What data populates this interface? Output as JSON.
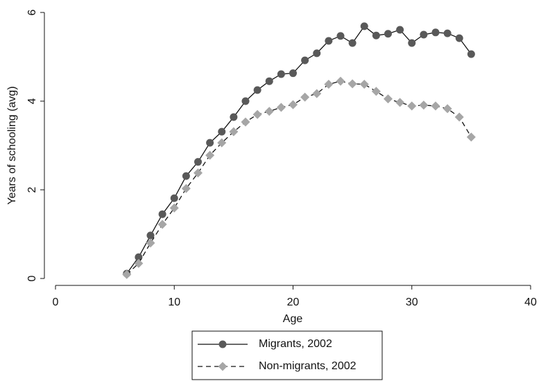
{
  "chart_data": {
    "type": "line",
    "xlabel": "Age",
    "ylabel": "Years of schooling (avg)",
    "x": [
      6,
      7,
      8,
      9,
      10,
      11,
      12,
      13,
      14,
      15,
      16,
      17,
      18,
      19,
      20,
      21,
      22,
      23,
      24,
      25,
      26,
      27,
      28,
      29,
      30,
      31,
      32,
      33,
      34,
      35
    ],
    "series": [
      {
        "name": "Migrants, 2002",
        "color": "#595959",
        "marker": "circle",
        "dash": "solid",
        "values": [
          0.11,
          0.48,
          0.97,
          1.45,
          1.81,
          2.31,
          2.63,
          3.06,
          3.31,
          3.64,
          4.0,
          4.25,
          4.45,
          4.61,
          4.63,
          4.92,
          5.08,
          5.36,
          5.47,
          5.31,
          5.69,
          5.48,
          5.52,
          5.61,
          5.31,
          5.5,
          5.55,
          5.53,
          5.42,
          5.06
        ]
      },
      {
        "name": "Non-migrants, 2002",
        "color": "#a6a6a6",
        "marker": "diamond",
        "dash": "dashed",
        "values": [
          0.09,
          0.34,
          0.8,
          1.22,
          1.59,
          2.03,
          2.38,
          2.78,
          3.06,
          3.31,
          3.53,
          3.7,
          3.77,
          3.86,
          3.92,
          4.09,
          4.17,
          4.38,
          4.45,
          4.39,
          4.38,
          4.22,
          4.05,
          3.97,
          3.89,
          3.91,
          3.89,
          3.83,
          3.64,
          3.19
        ]
      }
    ],
    "xlim": [
      0,
      40
    ],
    "xticks": [
      0,
      10,
      20,
      30,
      40
    ],
    "ylim": [
      0,
      6
    ],
    "yticks": [
      0,
      2,
      4,
      6
    ],
    "grid": false,
    "legend": "bottom"
  }
}
